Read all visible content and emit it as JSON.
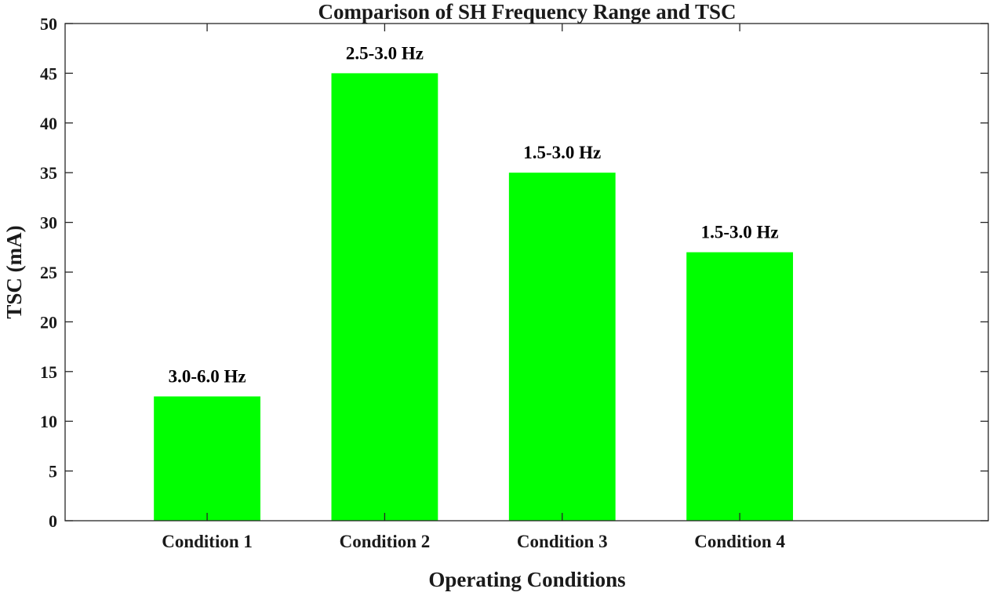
{
  "chart_data": {
    "type": "bar",
    "title": "Comparison of SH Frequency Range and TSC",
    "xlabel": "Operating Conditions",
    "ylabel": "TSC (mA)",
    "categories": [
      "Condition 1",
      "Condition 2",
      "Condition 3",
      "Condition 4"
    ],
    "values": [
      12.5,
      45,
      35,
      27
    ],
    "data_labels": [
      "3.0-6.0 Hz",
      "2.5-3.0 Hz",
      "1.5-3.0 Hz",
      "1.5-3.0 Hz"
    ],
    "ylim": [
      0,
      50
    ],
    "yticks": [
      0,
      5,
      10,
      15,
      20,
      25,
      30,
      35,
      40,
      45,
      50
    ],
    "xlim": [
      0.2,
      5.4
    ],
    "grid": false,
    "bar_color": "#00ff00"
  }
}
